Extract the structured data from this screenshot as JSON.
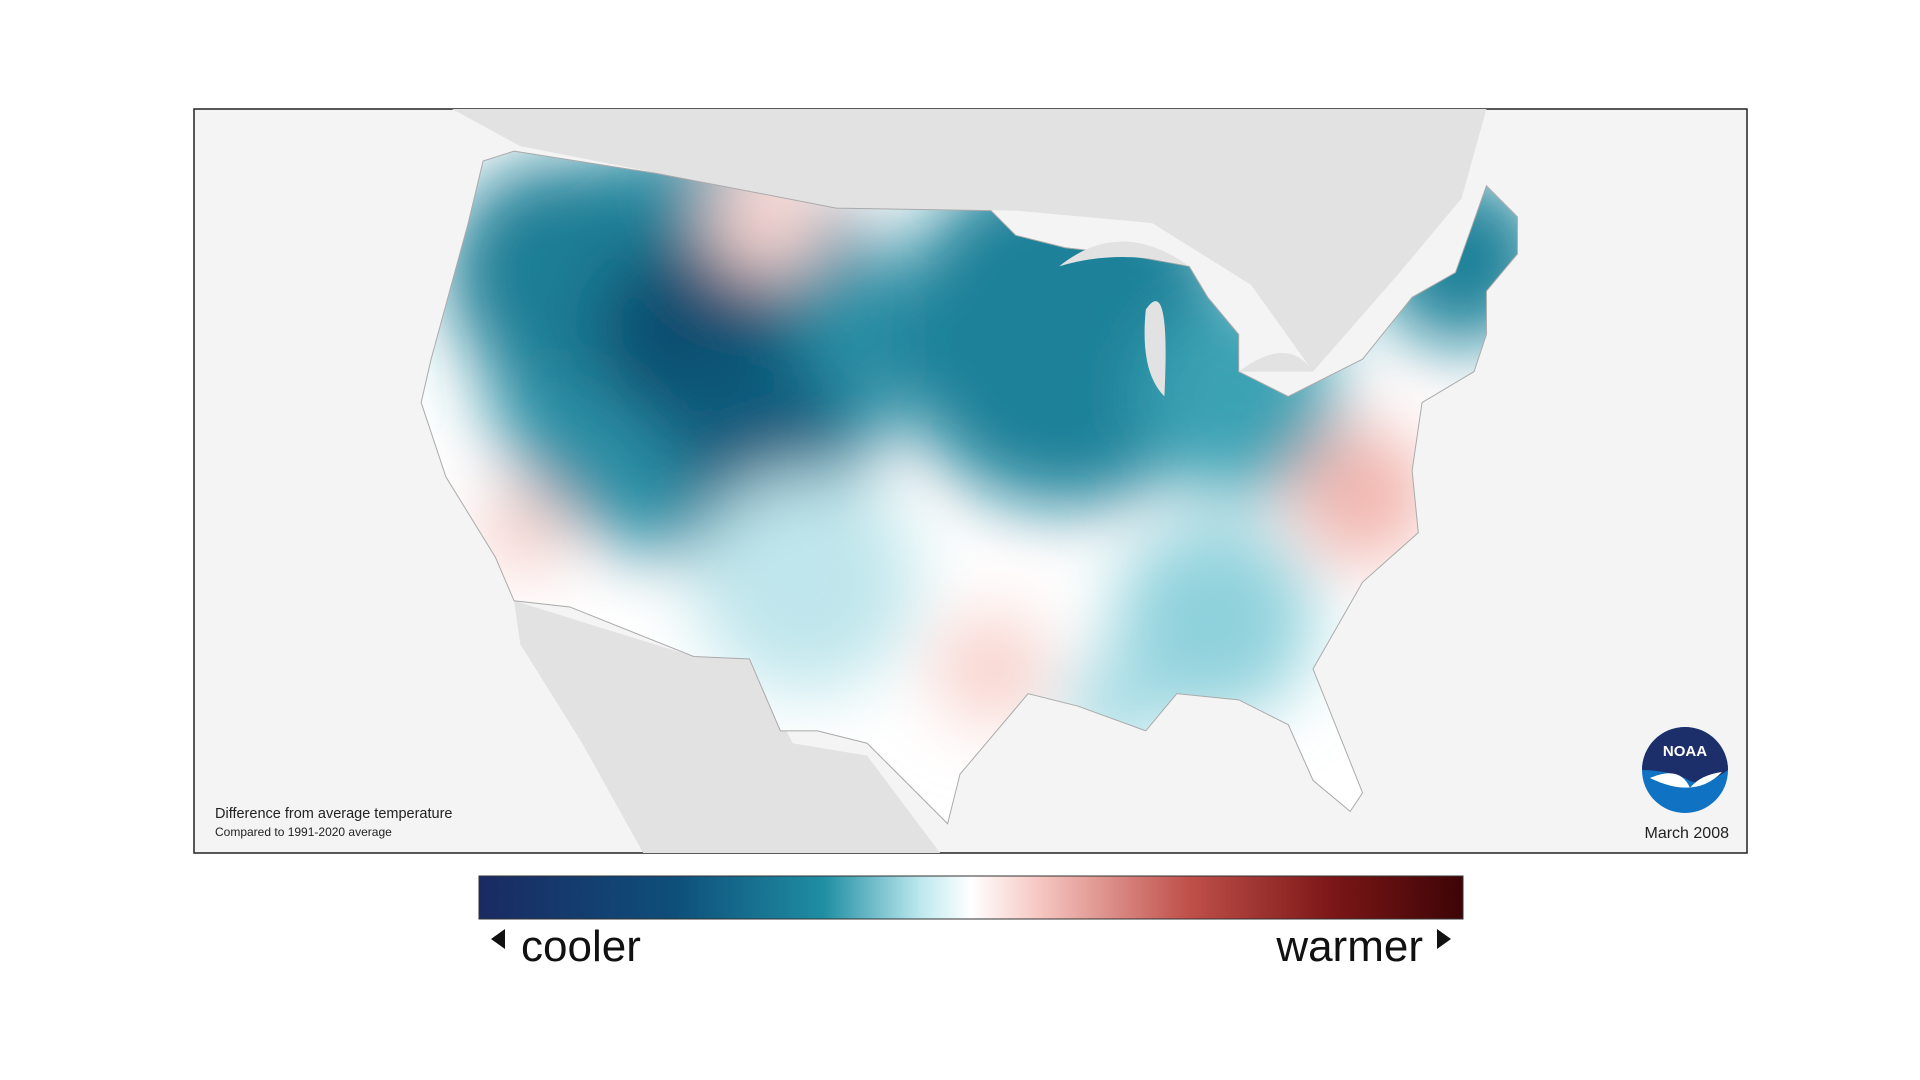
{
  "map": {
    "caption": "Difference from average temperature",
    "subcaption": "Compared to 1991-2020 average",
    "date": "March 2008",
    "logo": "NOAA"
  },
  "legend": {
    "low_label": "cooler",
    "high_label": "warmer"
  }
}
